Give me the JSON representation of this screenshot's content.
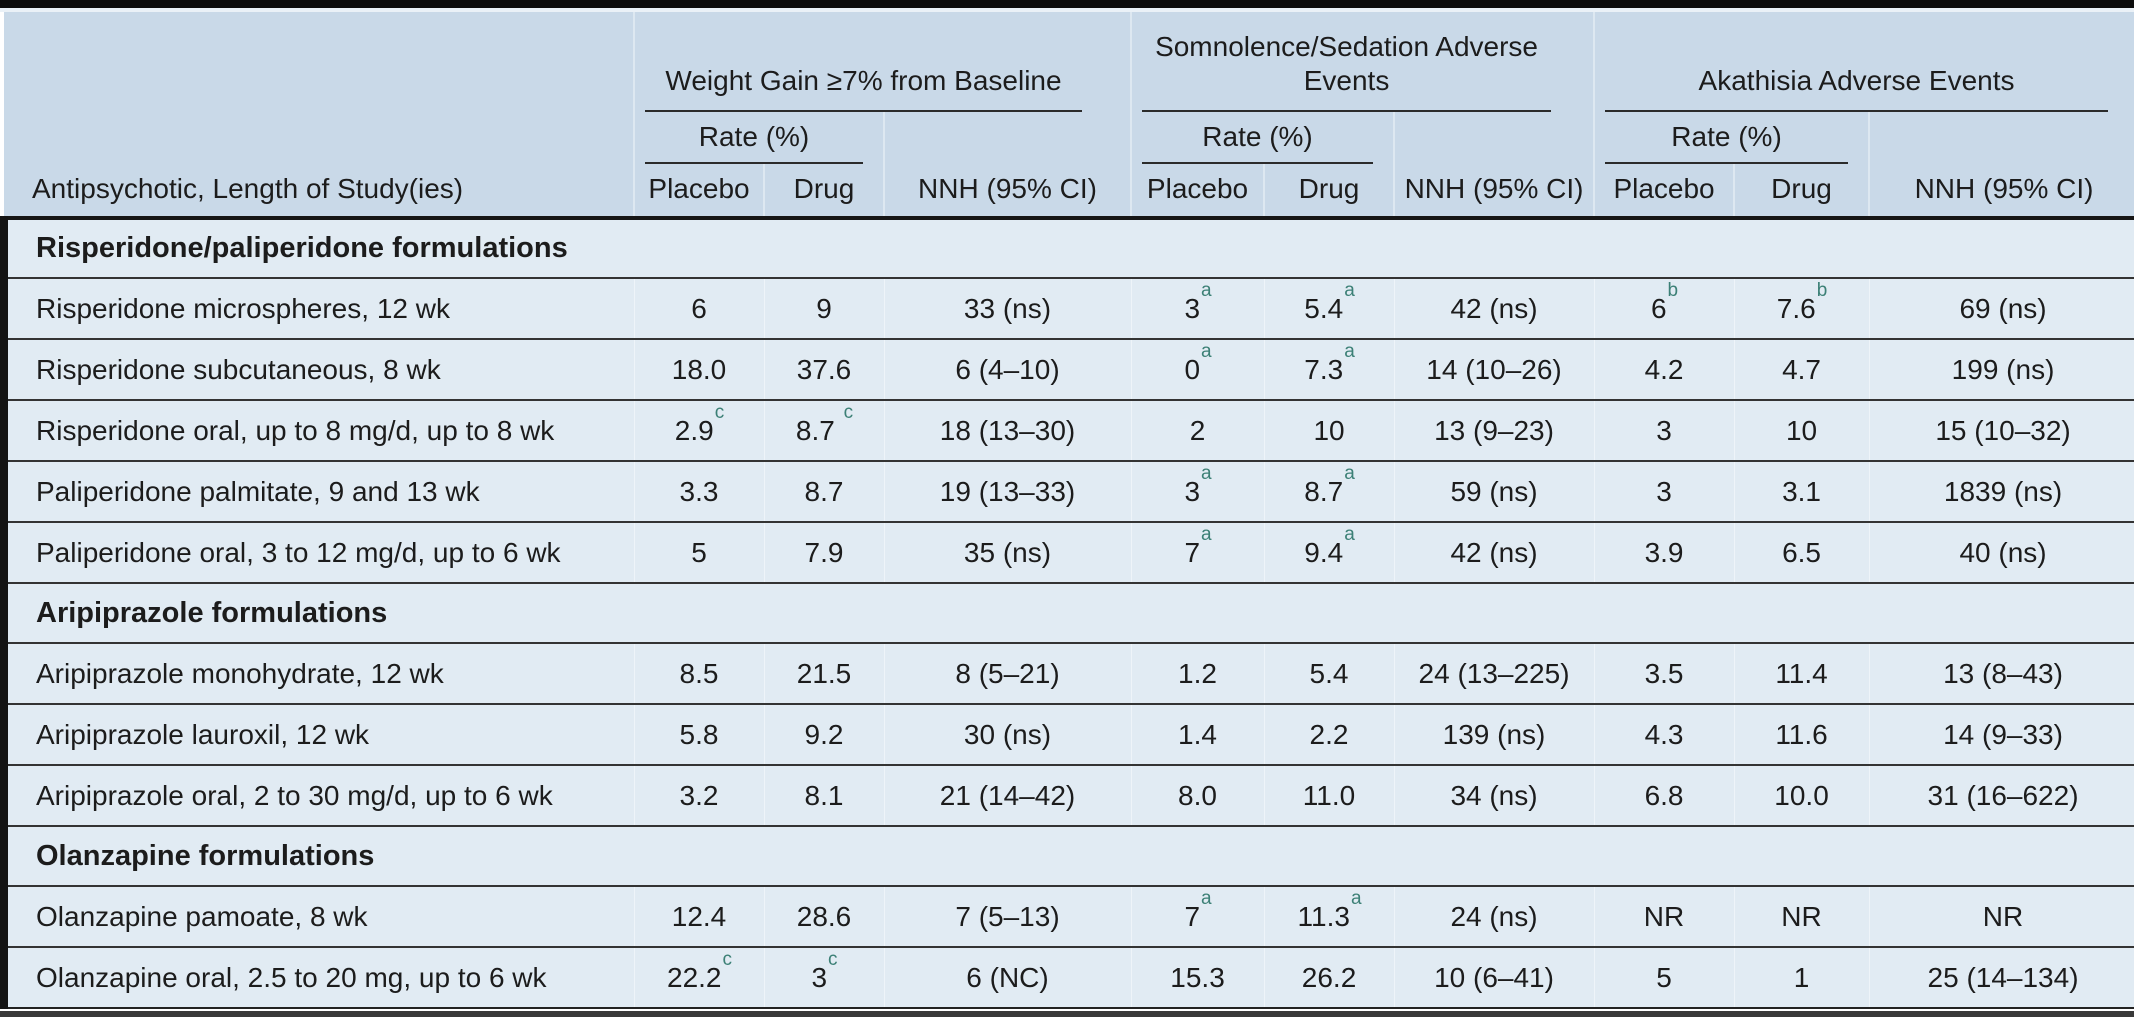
{
  "table": {
    "row_header": "Antipsychotic, Length of Study(ies)",
    "footnote_marker_color": "#3c8076",
    "groups": [
      {
        "label": "Weight Gain ≥7% from Baseline",
        "rate_label": "Rate (%)",
        "cols": [
          "Placebo",
          "Drug",
          "NNH (95% CI)"
        ]
      },
      {
        "label": "Somnolence/Sedation Adverse Events",
        "rate_label": "Rate (%)",
        "cols": [
          "Placebo",
          "Drug",
          "NNH (95% CI)"
        ]
      },
      {
        "label": "Akathisia Adverse Events",
        "rate_label": "Rate (%)",
        "cols": [
          "Placebo",
          "Drug",
          "NNH (95% CI)"
        ]
      }
    ],
    "sections": [
      {
        "title": "Risperidone/paliperidone formulations",
        "rows": [
          {
            "name": "Risperidone microspheres, 12 wk",
            "cells": [
              "6",
              "9",
              "33 (ns)",
              "3|a",
              "5.4|a",
              "42 (ns)",
              "6|b",
              "7.6|b",
              "69 (ns)"
            ]
          },
          {
            "name": "Risperidone subcutaneous, 8 wk",
            "cells": [
              "18.0",
              "37.6",
              "6 (4–10)",
              "0|a",
              "7.3|a",
              "14 (10–26)",
              "4.2",
              "4.7",
              "199 (ns)"
            ]
          },
          {
            "name": "Risperidone oral, up to 8 mg/d, up to 8 wk",
            "cells": [
              "2.9|c",
              "8.7 |c",
              "18 (13–30)",
              "2",
              "10",
              "13 (9–23)",
              "3",
              "10",
              "15 (10–32)"
            ]
          },
          {
            "name": "Paliperidone palmitate, 9 and 13 wk",
            "cells": [
              "3.3",
              "8.7",
              "19 (13–33)",
              "3|a",
              "8.7|a",
              "59 (ns)",
              "3",
              "3.1",
              "1839 (ns)"
            ]
          },
          {
            "name": "Paliperidone oral, 3 to 12 mg/d, up to 6 wk",
            "cells": [
              "5",
              "7.9",
              "35 (ns)",
              "7|a",
              "9.4|a",
              "42 (ns)",
              "3.9",
              "6.5",
              "40 (ns)"
            ]
          }
        ]
      },
      {
        "title": "Aripiprazole formulations",
        "rows": [
          {
            "name": "Aripiprazole monohydrate, 12 wk",
            "cells": [
              "8.5",
              "21.5",
              "8 (5–21)",
              "1.2",
              "5.4",
              "24 (13–225)",
              "3.5",
              "11.4",
              "13 (8–43)"
            ]
          },
          {
            "name": "Aripiprazole lauroxil, 12 wk",
            "cells": [
              "5.8",
              "9.2",
              "30 (ns)",
              "1.4",
              "2.2",
              "139 (ns)",
              "4.3",
              "11.6",
              "14 (9–33)"
            ]
          },
          {
            "name": "Aripiprazole oral, 2 to 30 mg/d, up to 6 wk",
            "cells": [
              "3.2",
              "8.1",
              "21 (14–42)",
              "8.0",
              "11.0",
              "34 (ns)",
              "6.8",
              "10.0",
              "31 (16–622)"
            ]
          }
        ]
      },
      {
        "title": "Olanzapine formulations",
        "rows": [
          {
            "name": "Olanzapine pamoate, 8 wk",
            "cells": [
              "12.4",
              "28.6",
              "7 (5–13)",
              "7|a",
              "11.3|a",
              "24 (ns)",
              "NR",
              "NR",
              "NR"
            ]
          },
          {
            "name": "Olanzapine oral, 2.5 to 20 mg, up to 6 wk",
            "cells": [
              "22.2|c",
              "3|c",
              "6 (NC)",
              "15.3",
              "26.2",
              "10 (6–41)",
              "5",
              "1",
              "25 (14–134)"
            ]
          }
        ]
      }
    ]
  }
}
